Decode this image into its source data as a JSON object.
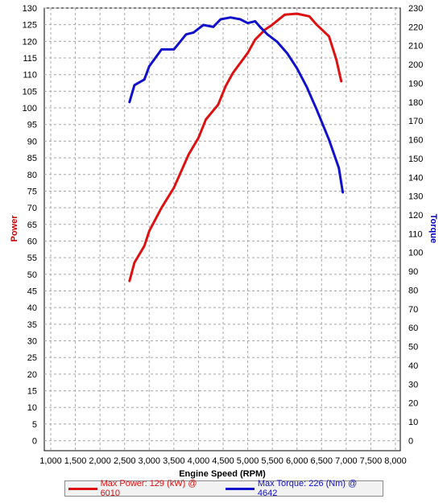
{
  "chart_data": {
    "type": "line",
    "xlabel": "Engine Speed (RPM)",
    "ylabel_left": "Power",
    "ylabel_right": "Torque",
    "xlim": [
      1000,
      8000
    ],
    "ylim_left": [
      -3,
      130
    ],
    "ylim_right": [
      -5.4,
      230
    ],
    "x_ticks": [
      "1,000",
      "1,500",
      "2,000",
      "2,500",
      "3,000",
      "3,500",
      "4,000",
      "4,500",
      "5,000",
      "5,500",
      "6,000",
      "6,500",
      "7,000",
      "7,500",
      "8,000"
    ],
    "y_left_ticks": [
      "0",
      "5",
      "10",
      "15",
      "20",
      "25",
      "30",
      "35",
      "40",
      "45",
      "50",
      "55",
      "60",
      "65",
      "70",
      "75",
      "80",
      "85",
      "90",
      "95",
      "100",
      "105",
      "110",
      "115",
      "120",
      "125",
      "130"
    ],
    "y_right_ticks": [
      "0",
      "10",
      "20",
      "30",
      "40",
      "50",
      "60",
      "70",
      "80",
      "90",
      "100",
      "110",
      "120",
      "130",
      "140",
      "150",
      "160",
      "170",
      "180",
      "190",
      "200",
      "210",
      "220",
      "230"
    ],
    "grid": true,
    "legend_position": "bottom",
    "series": [
      {
        "name": "Max Power: 129 (kW) @ 6010",
        "axis": "left",
        "color": "#dd1111",
        "x": [
          2600,
          2700,
          2900,
          3000,
          3250,
          3500,
          3800,
          4000,
          4150,
          4400,
          4550,
          4700,
          4850,
          5000,
          5150,
          5350,
          5500,
          5750,
          6000,
          6250,
          6400,
          6650,
          6800,
          6900
        ],
        "y": [
          48,
          53.5,
          58.5,
          63,
          70,
          76,
          86,
          91,
          96.5,
          101,
          106.5,
          110.5,
          113.5,
          116.5,
          120.5,
          123.5,
          125,
          128,
          128.3,
          127.5,
          125,
          121.5,
          114.5,
          108
        ]
      },
      {
        "name": "Max Torque: 226 (Nm) @ 4642",
        "axis": "right",
        "color": "#1111cc",
        "x": [
          2600,
          2700,
          2900,
          3000,
          3250,
          3500,
          3750,
          3900,
          4100,
          4300,
          4450,
          4650,
          4850,
          5000,
          5150,
          5250,
          5400,
          5600,
          5800,
          6000,
          6200,
          6400,
          6650,
          6850,
          6930
        ],
        "y": [
          180,
          189,
          192,
          199,
          208,
          208,
          216,
          217,
          221,
          220,
          224,
          225,
          224,
          222,
          223,
          220,
          216,
          212,
          206,
          198,
          188,
          176,
          160,
          145,
          132
        ]
      }
    ]
  }
}
